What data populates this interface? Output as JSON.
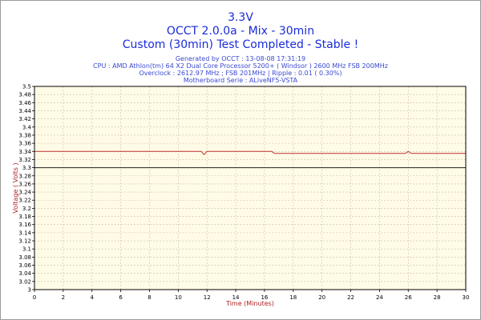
{
  "header": {
    "title_line1": "3.3V",
    "title_line2": "OCCT 2.0.0a - Mix - 30min",
    "title_line3": "Custom (30min) Test Completed - Stable !",
    "generated": "Generated by OCCT : 13-08-08 17:31:19",
    "cpu": "CPU : AMD Athlon(tm) 64 X2 Dual Core Processor 5200+ ( Windsor ) 2600 MHz FSB 200MHz",
    "overclock": "Overclock : 2612.97 MHz ; FSB 201MHz | Ripple : 0.01 ( 0.30%)",
    "motherboard": "Motherboard Serie : ALiveNF5-VSTA"
  },
  "chart_data": {
    "type": "line",
    "title": "3.3V",
    "xlabel": "Time (Minutes)",
    "ylabel": "Voltage ( Volts )",
    "xlim": [
      0,
      30
    ],
    "ylim": [
      3.0,
      3.5
    ],
    "x_ticks": [
      "0",
      "2",
      "4",
      "6",
      "8",
      "10",
      "12",
      "14",
      "16",
      "18",
      "20",
      "22",
      "24",
      "26",
      "28",
      "30"
    ],
    "y_ticks": [
      "3",
      "3.02",
      "3.04",
      "3.06",
      "3.08",
      "3.1",
      "3.12",
      "3.14",
      "3.16",
      "3.18",
      "3.2",
      "3.22",
      "3.24",
      "3.26",
      "3.28",
      "3.3",
      "3.32",
      "3.34",
      "3.36",
      "3.38",
      "3.4",
      "3.42",
      "3.44",
      "3.46",
      "3.48",
      "3.5"
    ],
    "grid": true,
    "reference_line": 3.3,
    "series": [
      {
        "color": "#c03030",
        "x": [
          0,
          11.6,
          11.8,
          12.0,
          16.5,
          16.7,
          25.8,
          26.0,
          26.2,
          30
        ],
        "y": [
          3.34,
          3.34,
          3.332,
          3.34,
          3.34,
          3.335,
          3.335,
          3.34,
          3.335,
          3.335
        ]
      }
    ],
    "colors": {
      "plot_bg": "#fffbe6",
      "grid": "#c8c0a0",
      "reference": "#202020",
      "title": "#1a2bd8",
      "axis_label": "#b02020"
    }
  }
}
